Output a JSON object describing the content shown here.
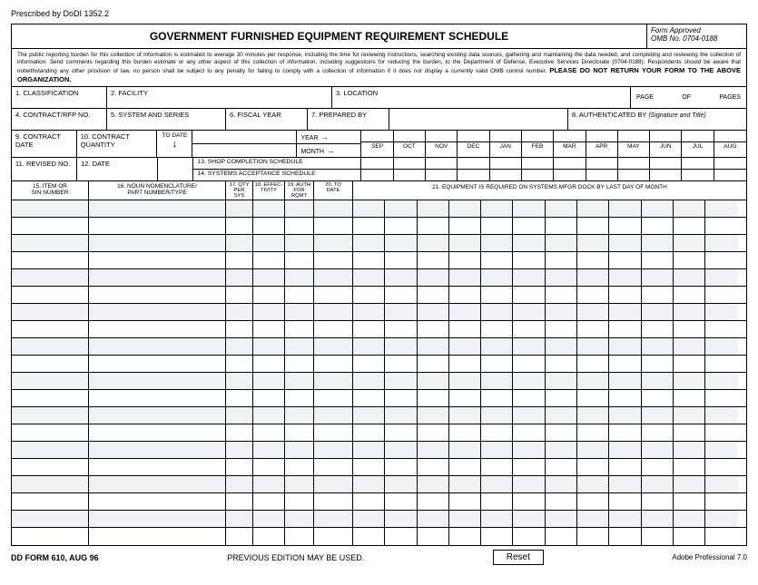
{
  "prescribed": "Prescribed by DoDI 1352.2",
  "title": "GOVERNMENT FURNISHED EQUIPMENT REQUIREMENT SCHEDULE",
  "form_approved": "Form Approved",
  "omb_no": "OMB No. 0704-0188",
  "burden_text": "The public reporting burden for this collection of information is estimated to average 30 minutes per response, including the time for reviewing instructions, searching existing data sources, gathering and maintaining the data needed, and completing and reviewing the collection of information. Send comments regarding this burden estimate or any other aspect of this collection of information, including suggestions for reducing the burden, to the Department of Defense, Executive Services Directorate (0704-0188). Respondents should be aware that notwithstanding any other provision of law, no person shall be subject to any penalty for failing to comply with a collection of information if it does not display a currently valid OMB control number.",
  "burden_bold": "PLEASE DO NOT RETURN YOUR FORM TO THE ABOVE ORGANIZATION.",
  "fields": {
    "f1": "1.  CLASSIFICATION",
    "f2": "2.  FACILITY",
    "f3": "3.  LOCATION",
    "page": "PAGE",
    "of": "OF",
    "pages": "PAGES",
    "f4": "4.  CONTRACT/RFP NO.",
    "f5": "5.  SYSTEM AND SERIES",
    "f6": "6.  FISCAL YEAR",
    "f7": "7.  PREPARED BY",
    "f8": "8.  AUTHENTICATED BY",
    "f8_note": "(Signature and Title)",
    "f9": "9.  CONTRACT DATE",
    "f10": "10. CONTRACT QUANTITY",
    "todate": "TO DATE",
    "year": "YEAR",
    "month": "MONTH",
    "f11": "11. REVISED NO.",
    "f12": "12. DATE",
    "f13": "13. SHOP COMPLETION SCHEDULE",
    "f14": "14. SYSTEMS ACCEPTANCE SCHEDULE",
    "f15": "15. ITEM OR\nSIN NUMBER",
    "f16": "16. NOUN NOMENCLATURE/\nPART NUMBER/TYPE",
    "f17": "17. QTY\nPER\nSYS",
    "f18": "18. EFFEC-\nTIVITY",
    "f19": "19. AUTH\nFOR\nRQMT",
    "f20": "20. TO\nDATE",
    "f21": "21. EQUIPMENT IS REQUIRED ON SYSTEMS MFGR DOCK BY LAST DAY OF MONTH"
  },
  "months": [
    "SEP",
    "OCT",
    "NOV",
    "DEC",
    "JAN",
    "FEB",
    "MAR",
    "APR",
    "MAY",
    "JUN",
    "JUL",
    "AUG"
  ],
  "grid_rows": 20,
  "footer": {
    "form_id": "DD FORM 610, AUG 96",
    "edition": "PREVIOUS EDITION MAY BE USED.",
    "reset": "Reset",
    "adobe": "Adobe Professional 7.0"
  },
  "colors": {
    "shade": "#eef1f5",
    "border": "#000000",
    "background": "#ffffff"
  }
}
